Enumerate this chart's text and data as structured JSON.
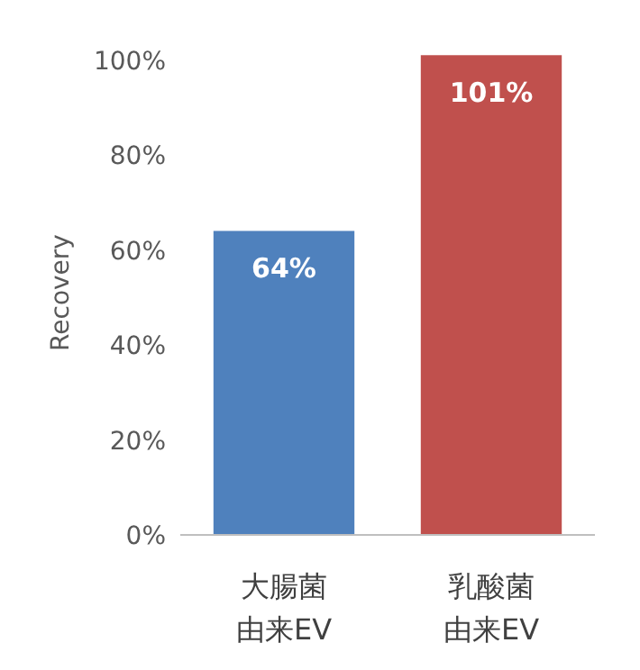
{
  "chart_data": {
    "type": "bar",
    "ylabel": "Recovery",
    "categories": [
      "大腸菌由来EV",
      "乳酸菌由来EV"
    ],
    "values": [
      64,
      101
    ],
    "colors": [
      "#4f81bd",
      "#c0504d"
    ],
    "value_labels": [
      "64%",
      "101%"
    ],
    "ylim": [
      0,
      102
    ],
    "yticks": [
      {
        "value": 0,
        "label": "0%"
      },
      {
        "value": 20,
        "label": "20%"
      },
      {
        "value": 40,
        "label": "40%"
      },
      {
        "value": 60,
        "label": "60%"
      },
      {
        "value": 80,
        "label": "80%"
      },
      {
        "value": 100,
        "label": "100%"
      }
    ],
    "grid": false
  }
}
